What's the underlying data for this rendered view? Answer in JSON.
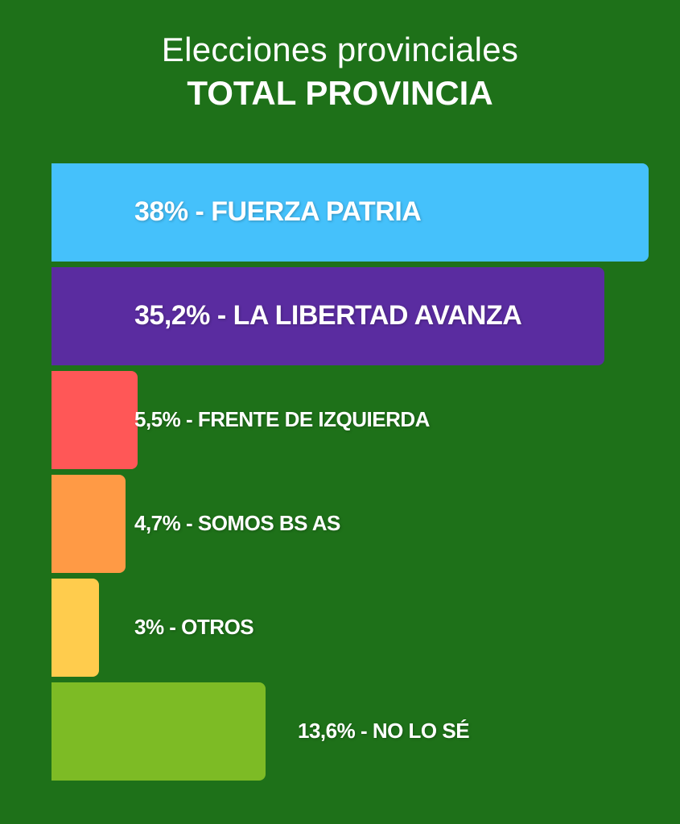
{
  "chart_data": {
    "type": "bar",
    "orientation": "horizontal",
    "title": "Elecciones provinciales",
    "subtitle": "TOTAL PROVINCIA",
    "unit": "%",
    "categories": [
      "FUERZA PATRIA",
      "LA LIBERTAD AVANZA",
      "FRENTE DE IZQUIERDA",
      "SOMOS BS AS",
      "OTROS",
      "NO LO SÉ"
    ],
    "values": [
      38,
      35.2,
      5.5,
      4.7,
      3,
      13.6
    ],
    "labels": [
      "38% - FUERZA PATRIA",
      "35,2% - LA LIBERTAD AVANZA",
      "5,5% - FRENTE DE IZQUIERDA",
      "4,7% - SOMOS BS AS",
      "3% - OTROS",
      "13,6% - NO LO SÉ"
    ],
    "colors": [
      "#45c1fb",
      "#5a2ca0",
      "#ff5757",
      "#ff9a45",
      "#ffcc4d",
      "#7dbb25"
    ],
    "background": "#1e7119",
    "text_color": "#ffffff",
    "xlim": [
      0,
      38
    ],
    "grid": false,
    "legend": "none"
  }
}
